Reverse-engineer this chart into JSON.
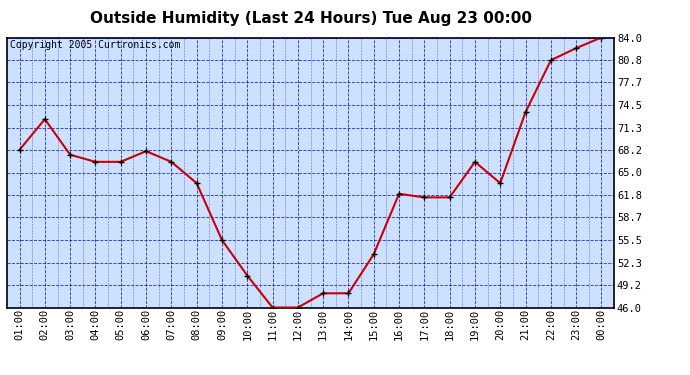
{
  "title": "Outside Humidity (Last 24 Hours) Tue Aug 23 00:00",
  "copyright": "Copyright 2005 Curtronics.com",
  "x_labels": [
    "01:00",
    "02:00",
    "03:00",
    "04:00",
    "05:00",
    "06:00",
    "07:00",
    "08:00",
    "09:00",
    "10:00",
    "11:00",
    "12:00",
    "13:00",
    "14:00",
    "15:00",
    "16:00",
    "17:00",
    "18:00",
    "19:00",
    "20:00",
    "21:00",
    "22:00",
    "23:00",
    "00:00"
  ],
  "y_values": [
    68.2,
    72.5,
    67.5,
    66.5,
    66.5,
    68.0,
    66.5,
    63.5,
    55.5,
    50.5,
    46.0,
    46.0,
    48.0,
    48.0,
    53.5,
    62.0,
    61.5,
    61.5,
    66.5,
    63.5,
    73.5,
    80.8,
    82.5,
    84.0
  ],
  "ylim_min": 46.0,
  "ylim_max": 84.0,
  "yticks": [
    46.0,
    49.2,
    52.3,
    55.5,
    58.7,
    61.8,
    65.0,
    68.2,
    71.3,
    74.5,
    77.7,
    80.8,
    84.0
  ],
  "line_color": "#cc0000",
  "marker_color": "#000000",
  "plot_bg_color": "#cce0ff",
  "grid_color": "#0000bb",
  "title_fontsize": 11,
  "copyright_fontsize": 7,
  "axis_label_fontsize": 7.5
}
